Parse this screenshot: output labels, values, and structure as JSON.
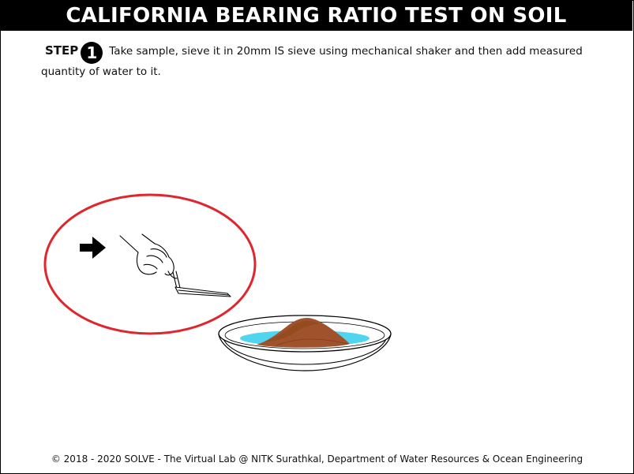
{
  "header": {
    "title": "CALIFORNIA BEARING RATIO TEST ON SOIL"
  },
  "step": {
    "label": "STEP",
    "number": "1",
    "text": "Take sample, sieve it in 20mm IS sieve using mechanical shaker and then add measured quantity of water to it."
  },
  "scene": {
    "pointer_icon": "arrow-right-icon",
    "tool_icon": "hand-with-trowel",
    "object_icon": "dish-with-soil",
    "highlight_color": "#e0262d",
    "soil_color": "#a0522d",
    "water_color": "#4fd5ef"
  },
  "footer": {
    "copyright": "© 2018 - 2020 SOLVE - The Virtual Lab @ NITK Surathkal, Department of Water Resources & Ocean Engineering"
  }
}
